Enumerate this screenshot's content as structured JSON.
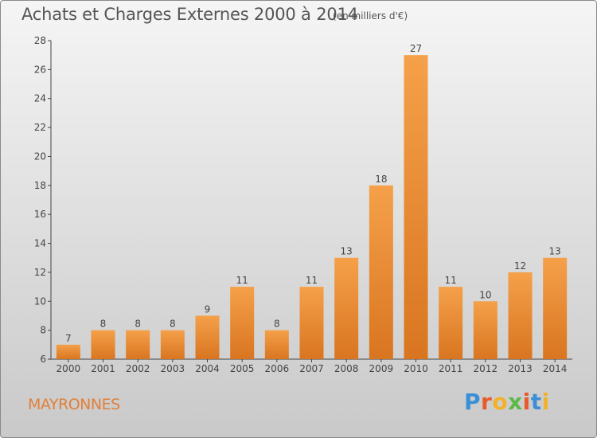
{
  "header": {
    "title": "Achats et Charges Externes 2000 à 2014",
    "subtitle": "(en milliers d'€)"
  },
  "footer": {
    "place": "MAYRONNES",
    "logo_text": "Proxiti"
  },
  "colors": {
    "bar_light": "#f5a04a",
    "bar_dark": "#d97520",
    "place": "#e0803a",
    "logo_letters": [
      "#3b8fd6",
      "#e85a2a",
      "#f1b12b",
      "#5cb848",
      "#e85a2a",
      "#3b8fd6",
      "#f1b12b"
    ]
  },
  "chart_data": {
    "type": "bar",
    "title": "Achats et Charges Externes 2000 à 2014",
    "subtitle": "(en milliers d'€)",
    "categories": [
      "2000",
      "2001",
      "2002",
      "2003",
      "2004",
      "2005",
      "2006",
      "2007",
      "2008",
      "2009",
      "2010",
      "2011",
      "2012",
      "2013",
      "2014"
    ],
    "values": [
      7,
      8,
      8,
      8,
      9,
      11,
      8,
      11,
      13,
      18,
      27,
      11,
      10,
      12,
      13
    ],
    "ylim": [
      6,
      28
    ],
    "yticks": [
      6,
      8,
      10,
      12,
      14,
      16,
      18,
      20,
      22,
      24,
      26,
      28
    ],
    "grid": false,
    "legend": "none"
  }
}
